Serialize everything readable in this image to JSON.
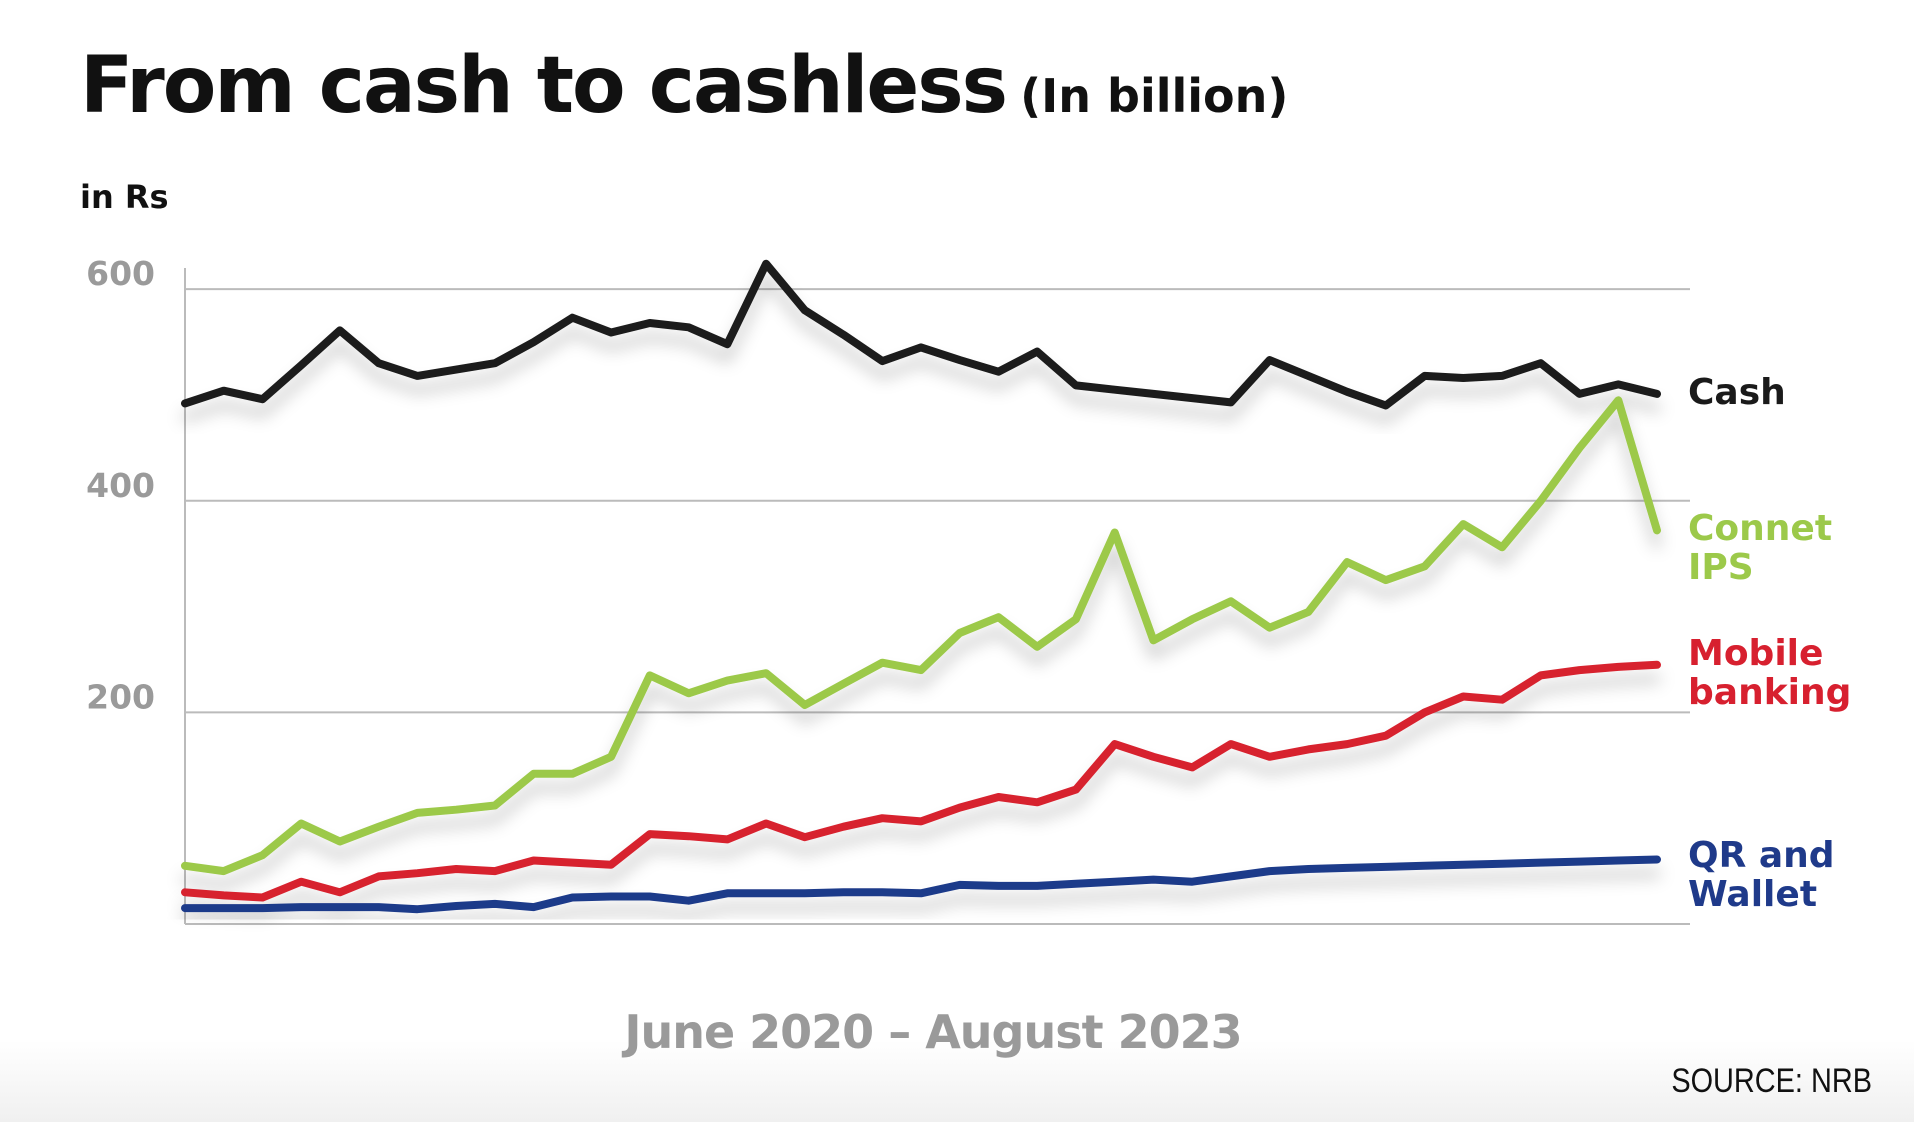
{
  "chart_data": {
    "type": "line",
    "title": "From cash to cashless",
    "subtitle": "(In billion)",
    "y_label": "in Rs",
    "x_label": "June 2020 – August 2023",
    "source": "SOURCE: NRB",
    "categories": [
      null,
      null,
      null,
      null,
      null,
      null,
      null,
      null,
      null,
      null,
      null,
      null,
      null,
      null,
      null,
      null,
      null,
      null,
      null,
      null,
      null,
      null,
      null,
      null,
      null,
      null,
      null,
      null,
      null,
      null,
      null,
      null,
      null,
      null,
      null,
      null,
      null,
      null,
      null
    ],
    "ylim": [
      0,
      620
    ],
    "yticks": [
      200,
      400,
      600
    ],
    "grid": true,
    "series": [
      {
        "name": "Cash",
        "color": "#1a1a1a",
        "values": [
          492,
          504,
          496,
          528,
          561,
          530,
          518,
          524,
          530,
          550,
          573,
          559,
          568,
          564,
          548,
          624,
          580,
          557,
          532,
          545,
          533,
          522,
          541,
          509,
          505,
          501,
          497,
          493,
          533,
          518,
          503,
          490,
          518,
          516,
          518,
          530,
          501,
          510,
          501
        ]
      },
      {
        "name": "Connet IPS",
        "color": "#9cc94a",
        "values": [
          55,
          50,
          65,
          95,
          78,
          92,
          105,
          108,
          112,
          142,
          142,
          158,
          235,
          218,
          230,
          237,
          207,
          227,
          247,
          240,
          275,
          290,
          262,
          288,
          370,
          268,
          288,
          305,
          280,
          295,
          342,
          325,
          338,
          378,
          356,
          400,
          450,
          495,
          372
        ]
      },
      {
        "name": "Mobile banking",
        "color": "#d7202f",
        "values": [
          30,
          27,
          25,
          40,
          30,
          45,
          48,
          52,
          50,
          60,
          58,
          56,
          85,
          83,
          80,
          95,
          82,
          92,
          100,
          97,
          110,
          120,
          115,
          127,
          170,
          158,
          148,
          170,
          158,
          165,
          170,
          178,
          200,
          215,
          212,
          235,
          240,
          243,
          245
        ]
      },
      {
        "name": "QR and Wallet",
        "color": "#1f3a8a",
        "values": [
          15,
          15,
          15,
          16,
          16,
          16,
          14,
          17,
          19,
          16,
          25,
          26,
          26,
          22,
          29,
          29,
          29,
          30,
          30,
          29,
          37,
          36,
          36,
          38,
          40,
          42,
          40,
          45,
          50,
          52,
          53,
          54,
          55,
          56,
          57,
          58,
          59,
          60,
          61
        ]
      }
    ]
  }
}
